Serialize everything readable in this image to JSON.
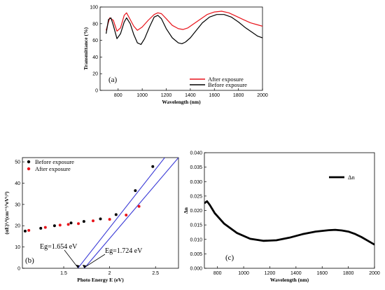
{
  "chart_data": [
    {
      "id": "a",
      "type": "line",
      "panel_label": "(a)",
      "xlabel": "Wavelength (nm)",
      "ylabel": "Transmittance (%)",
      "xlim": [
        650,
        2000
      ],
      "ylim": [
        0,
        100
      ],
      "xticks": [
        800,
        1000,
        1200,
        1400,
        1600,
        1800,
        2000
      ],
      "yticks": [
        0,
        20,
        40,
        60,
        80,
        100
      ],
      "legend_position": "center-right",
      "series": [
        {
          "name": "After exposure",
          "color": "#e8141b",
          "x": [
            700,
            730,
            760,
            790,
            820,
            850,
            870,
            900,
            930,
            960,
            1000,
            1050,
            1100,
            1130,
            1160,
            1200,
            1250,
            1300,
            1340,
            1380,
            1420,
            1480,
            1540,
            1600,
            1660,
            1720,
            1780,
            1840,
            1900,
            1950,
            2000
          ],
          "y": [
            72,
            87,
            84,
            71,
            75,
            90,
            93,
            85,
            77,
            72,
            76,
            84,
            91,
            93,
            92,
            86,
            78,
            74,
            73,
            75,
            79,
            85,
            91,
            94,
            95,
            93,
            89,
            85,
            81,
            79,
            77
          ]
        },
        {
          "name": "Before exposure",
          "color": "#000000",
          "x": [
            700,
            720,
            740,
            760,
            790,
            820,
            850,
            870,
            900,
            930,
            960,
            990,
            1020,
            1060,
            1100,
            1130,
            1160,
            1200,
            1250,
            1300,
            1330,
            1360,
            1400,
            1450,
            1500,
            1560,
            1620,
            1680,
            1740,
            1800,
            1860,
            1920,
            1960,
            2000
          ],
          "y": [
            68,
            85,
            87,
            78,
            62,
            68,
            82,
            87,
            80,
            67,
            57,
            55,
            62,
            76,
            88,
            90,
            86,
            74,
            63,
            57,
            56,
            58,
            63,
            72,
            81,
            88,
            91,
            91,
            88,
            82,
            75,
            69,
            65,
            63
          ]
        }
      ]
    },
    {
      "id": "b",
      "type": "scatter",
      "panel_label": "(b)",
      "xlabel": "Photo Energy E (eV)",
      "ylabel": "(αE)¹/²(cm⁻¹/²eV¹/²)",
      "xlim": [
        1.05,
        2.75
      ],
      "ylim": [
        0,
        52
      ],
      "xticks": [
        1.5,
        2.0,
        2.5
      ],
      "yticks": [
        0,
        10,
        20,
        30,
        40,
        50
      ],
      "legend_position": "top-left",
      "series": [
        {
          "name": "Before exposure",
          "color": "#000000",
          "x": [
            1.08,
            1.25,
            1.4,
            1.58,
            1.72,
            1.9,
            2.07,
            2.28,
            2.47
          ],
          "y": [
            17.5,
            18.8,
            20.0,
            21.3,
            22.0,
            23.2,
            25.2,
            36.5,
            47.8
          ]
        },
        {
          "name": "After exposure",
          "color": "#e8141b",
          "x": [
            1.12,
            1.3,
            1.46,
            1.55,
            1.66,
            1.82,
            2.0,
            2.18,
            2.32
          ],
          "y": [
            17.8,
            19.2,
            20.3,
            20.6,
            21.0,
            22.3,
            23.0,
            25.0,
            29.1
          ]
        }
      ],
      "fit_lines": [
        {
          "color": "#3b3bd6",
          "x": [
            1.654,
            2.6
          ],
          "y": [
            0,
            52
          ]
        },
        {
          "color": "#3b3bd6",
          "x": [
            1.724,
            2.75
          ],
          "y": [
            0,
            52
          ]
        }
      ],
      "annotations": [
        {
          "text": "Eg=1.654 eV",
          "target_x": 1.654,
          "target_y": 0
        },
        {
          "text": "Eg=1.724 eV",
          "target_x": 1.724,
          "target_y": 0
        }
      ]
    },
    {
      "id": "c",
      "type": "line",
      "panel_label": "(c)",
      "xlabel": "Wavelength (nm)",
      "ylabel": "Δn",
      "xlim": [
        700,
        2000
      ],
      "ylim": [
        0.0,
        0.04
      ],
      "xticks": [
        800,
        1000,
        1200,
        1400,
        1600,
        1800,
        2000
      ],
      "yticks": [
        0.0,
        0.005,
        0.01,
        0.015,
        0.02,
        0.025,
        0.03,
        0.035,
        0.04
      ],
      "ytick_labels": [
        "0.000",
        "0.005",
        "0.010",
        "0.015",
        "0.020",
        "0.025",
        "0.030",
        "0.035",
        "0.040"
      ],
      "legend_position": "top-right",
      "series": [
        {
          "name": "Δn",
          "color": "#000000",
          "x": [
            700,
            720,
            740,
            780,
            850,
            950,
            1050,
            1150,
            1250,
            1350,
            1450,
            1550,
            1650,
            1700,
            1750,
            1800,
            1850,
            1900,
            1950,
            2000
          ],
          "y": [
            0.0225,
            0.0232,
            0.022,
            0.019,
            0.0155,
            0.0122,
            0.0102,
            0.0095,
            0.0097,
            0.0106,
            0.0118,
            0.0127,
            0.0132,
            0.0133,
            0.0131,
            0.0127,
            0.0119,
            0.0108,
            0.0095,
            0.0082
          ]
        }
      ]
    }
  ]
}
